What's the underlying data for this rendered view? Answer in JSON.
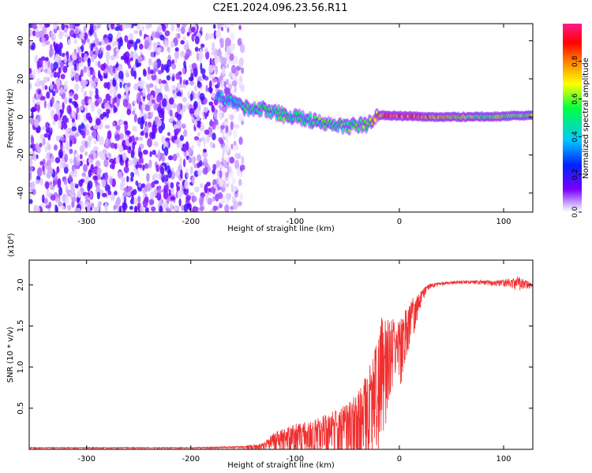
{
  "title": "C2E1.2024.096.23.56.R11",
  "colors": {
    "snr_line": "#f03030",
    "spectrogram_palette": [
      "#ffffff",
      "#e6d6ff",
      "#7a00ff",
      "#0022ff",
      "#00e0ff",
      "#00ff40",
      "#ffff00",
      "#ff8000",
      "#ff0000",
      "#ff1a8c"
    ]
  },
  "chart_data": [
    {
      "type": "heatmap",
      "title": "",
      "xlabel": "Height of straight line (km)",
      "ylabel": "Frequency (Hz)",
      "xlim": [
        -355,
        128
      ],
      "ylim": [
        -50,
        49
      ],
      "xticks": [
        -300,
        -200,
        -100,
        0,
        100
      ],
      "xtick_labels": [
        "-300",
        "-200",
        "-100",
        "0",
        "100"
      ],
      "yticks": [
        -40,
        -20,
        0,
        20,
        40
      ],
      "ytick_labels": [
        "-40",
        "-20",
        "0",
        "20",
        "40"
      ],
      "colorbar": {
        "label": "Normalized spectral amplitude",
        "range": [
          0,
          1
        ],
        "ticks": [
          0.0,
          0.2,
          0.4,
          0.6,
          0.8
        ],
        "tick_labels": [
          "0.0",
          "0.2",
          "0.4",
          "0.6",
          "0.8"
        ]
      },
      "features": {
        "noise_region_x": [
          -355,
          -160
        ],
        "noise_amplitude": 0.3,
        "signal_track": [
          {
            "x": -175,
            "freq": 10,
            "amp": 0.35
          },
          {
            "x": -160,
            "freq": 8,
            "amp": 0.45
          },
          {
            "x": -150,
            "freq": 5,
            "amp": 0.5
          },
          {
            "x": -130,
            "freq": 4,
            "amp": 0.55
          },
          {
            "x": -110,
            "freq": 1,
            "amp": 0.55
          },
          {
            "x": -90,
            "freq": -1,
            "amp": 0.5
          },
          {
            "x": -70,
            "freq": -4,
            "amp": 0.55
          },
          {
            "x": -50,
            "freq": -5,
            "amp": 0.55
          },
          {
            "x": -30,
            "freq": -4,
            "amp": 0.6
          },
          {
            "x": -20,
            "freq": 1,
            "amp": 0.85
          },
          {
            "x": 0,
            "freq": 0.5,
            "amp": 0.95
          },
          {
            "x": 30,
            "freq": 0,
            "amp": 0.8
          },
          {
            "x": 60,
            "freq": 0,
            "amp": 0.65
          },
          {
            "x": 100,
            "freq": 0.3,
            "amp": 0.6
          },
          {
            "x": 128,
            "freq": 1,
            "amp": 0.6
          }
        ]
      }
    },
    {
      "type": "line",
      "title": "",
      "xlabel": "Height of straight line (km)",
      "ylabel": "SNR (10 * v/v)",
      "y_scale_label": "(x10⁴)",
      "xlim": [
        -355,
        128
      ],
      "ylim": [
        0,
        2.3
      ],
      "xticks": [
        -300,
        -200,
        -100,
        0,
        100
      ],
      "xtick_labels": [
        "-300",
        "-200",
        "-100",
        "0",
        "100"
      ],
      "yticks": [
        0.5,
        1.0,
        1.5,
        2.0
      ],
      "ytick_labels": [
        "0.5",
        "1.0",
        "1.5",
        "2.0"
      ],
      "series": [
        {
          "x": [
            -355,
            -300,
            -250,
            -200,
            -150,
            -130,
            -120,
            -110,
            -100,
            -90,
            -80,
            -70,
            -60,
            -50,
            -40,
            -30,
            -25,
            -20,
            -17,
            -15,
            -12,
            -10,
            -5,
            0,
            5,
            10,
            15,
            20,
            25,
            30,
            40,
            50,
            60,
            70,
            80,
            90,
            100,
            110,
            115,
            120,
            128
          ],
          "y": [
            0.02,
            0.02,
            0.02,
            0.02,
            0.03,
            0.05,
            0.12,
            0.15,
            0.18,
            0.2,
            0.22,
            0.25,
            0.28,
            0.3,
            0.4,
            0.6,
            0.75,
            0.9,
            1.1,
            1.05,
            1.2,
            1.3,
            1.35,
            1.3,
            1.45,
            1.6,
            1.75,
            1.85,
            1.95,
            2.0,
            2.02,
            2.03,
            2.04,
            2.04,
            2.04,
            2.03,
            2.04,
            2.04,
            2.05,
            2.02,
            2.0
          ],
          "fluct_max": [
            0.01,
            0.01,
            0.01,
            0.01,
            0.02,
            0.08,
            0.2,
            0.25,
            0.3,
            0.3,
            0.35,
            0.4,
            0.45,
            0.6,
            0.7,
            0.8,
            0.9,
            1.0,
            1.2,
            1.1,
            0.9,
            0.7,
            0.6,
            0.6,
            0.5,
            0.4,
            0.3,
            0.15,
            0.08,
            0.04,
            0.03,
            0.03,
            0.03,
            0.03,
            0.04,
            0.05,
            0.06,
            0.1,
            0.15,
            0.1,
            0.03
          ]
        }
      ]
    }
  ]
}
